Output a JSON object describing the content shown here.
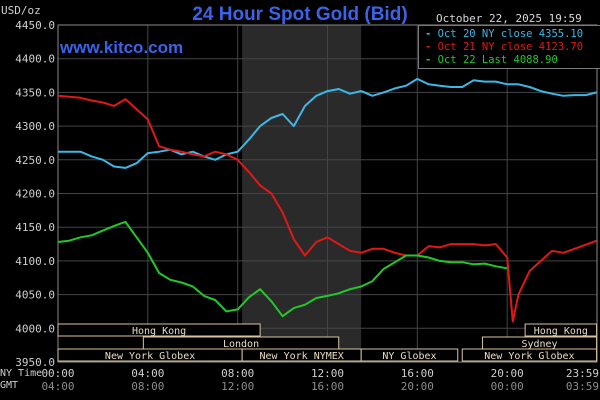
{
  "chart_data": {
    "type": "line",
    "title": "24 Hour Spot Gold (Bid)",
    "ylabel": "USD/oz",
    "datestamp": "October 22, 2025 19:59",
    "watermark": "www.kitco.com",
    "ylim": [
      3950,
      4450
    ],
    "yticks": [
      "4450.0",
      "4400.0",
      "4350.0",
      "4300.0",
      "4250.0",
      "4200.0",
      "4150.0",
      "4100.0",
      "4050.0",
      "4000.0",
      "3950.0"
    ],
    "xlim": [
      0,
      24
    ],
    "xticks_ny": [
      "00:00",
      "04:00",
      "08:00",
      "12:00",
      "16:00",
      "20:00",
      "23:59"
    ],
    "xticks_gmt": [
      "04:00",
      "08:00",
      "12:00",
      "16:00",
      "20:00",
      "00:00",
      "03:59"
    ],
    "tz_ny": "NY Time",
    "tz_gmt": "GMT",
    "shaded_session_hours": [
      8.2,
      13.5
    ],
    "grid": true,
    "colors": {
      "oct20": "#3cb8e8",
      "oct21": "#e01818",
      "oct22": "#22c82a",
      "title": "#3a63e8",
      "grid": "#444444"
    },
    "series": [
      {
        "name": "Oct 20 NY close 4355.10",
        "color": "#3cb8e8",
        "x": [
          0,
          1,
          1.5,
          2,
          2.5,
          3,
          3.5,
          4,
          4.5,
          5,
          5.5,
          6,
          6.5,
          7,
          7.5,
          8,
          8.5,
          9,
          9.5,
          10,
          10.5,
          11,
          11.5,
          12,
          12.5,
          13,
          13.5,
          14,
          14.5,
          15,
          15.5,
          16,
          16.5,
          17,
          17.5,
          18,
          18.5,
          19,
          19.5,
          20,
          20.5,
          21,
          21.5,
          22,
          22.5,
          23,
          23.5,
          23.98
        ],
        "values": [
          4262,
          4262,
          4255,
          4250,
          4240,
          4238,
          4245,
          4260,
          4262,
          4265,
          4258,
          4262,
          4255,
          4250,
          4258,
          4262,
          4280,
          4300,
          4312,
          4318,
          4300,
          4330,
          4345,
          4352,
          4355,
          4348,
          4352,
          4345,
          4350,
          4356,
          4360,
          4370,
          4362,
          4360,
          4358,
          4358,
          4368,
          4366,
          4366,
          4362,
          4362,
          4358,
          4352,
          4348,
          4345,
          4346,
          4346,
          4350
        ]
      },
      {
        "name": "Oct 21 NY close 4123.70",
        "color": "#e01818",
        "x": [
          0,
          1,
          1.5,
          2,
          2.5,
          3,
          3.5,
          4,
          4.5,
          5,
          5.5,
          6,
          6.5,
          7,
          7.5,
          8,
          8.5,
          9,
          9.5,
          10,
          10.5,
          11,
          11.5,
          12,
          12.5,
          13,
          13.5,
          14,
          14.5,
          15,
          15.5,
          16,
          16.5,
          17,
          17.5,
          18,
          18.5,
          19,
          19.5,
          20,
          20.25,
          20.5,
          21,
          21.5,
          22,
          22.5,
          23,
          23.5,
          23.98
        ],
        "values": [
          4345,
          4342,
          4338,
          4335,
          4330,
          4340,
          4325,
          4310,
          4270,
          4265,
          4262,
          4258,
          4255,
          4262,
          4258,
          4250,
          4232,
          4212,
          4200,
          4172,
          4132,
          4108,
          4128,
          4135,
          4125,
          4115,
          4112,
          4118,
          4118,
          4112,
          4108,
          4108,
          4122,
          4120,
          4125,
          4125,
          4125,
          4123,
          4125,
          4105,
          4010,
          4050,
          4085,
          4100,
          4115,
          4112,
          4118,
          4124,
          4130
        ]
      },
      {
        "name": "Oct 22 Last 4088.90",
        "color": "#22c82a",
        "x": [
          0,
          0.5,
          1,
          1.5,
          2,
          2.5,
          3,
          3.5,
          4,
          4.5,
          5,
          5.5,
          6,
          6.5,
          7,
          7.5,
          8,
          8.5,
          9,
          9.5,
          10,
          10.5,
          11,
          11.5,
          12,
          12.5,
          13,
          13.5,
          14,
          14.5,
          15,
          15.5,
          16,
          16.5,
          17,
          17.5,
          18,
          18.5,
          19,
          19.5,
          20
        ],
        "values": [
          4128,
          4130,
          4135,
          4138,
          4145,
          4152,
          4158,
          4135,
          4112,
          4082,
          4072,
          4068,
          4062,
          4048,
          4042,
          4025,
          4028,
          4046,
          4058,
          4040,
          4018,
          4030,
          4035,
          4045,
          4048,
          4052,
          4058,
          4062,
          4070,
          4088,
          4098,
          4108,
          4108,
          4105,
          4100,
          4098,
          4098,
          4095,
          4096,
          4092,
          4089
        ]
      }
    ],
    "sessions": [
      {
        "label": "Hong Kong",
        "row": 0,
        "start": 0,
        "end": 9
      },
      {
        "label": "London",
        "row": 1,
        "start": 3.8,
        "end": 12.5
      },
      {
        "label": "New York Globex",
        "row": 2,
        "start": 0,
        "end": 8.2
      },
      {
        "label": "New York NYMEX",
        "row": 2,
        "start": 8.2,
        "end": 13.5
      },
      {
        "label": "NY Globex",
        "row": 2,
        "start": 13.5,
        "end": 17.8
      },
      {
        "label": "Hong Kong",
        "row": 0,
        "start": 20.8,
        "end": 23.98
      },
      {
        "label": "Sydney",
        "row": 1,
        "start": 18.9,
        "end": 23.98
      },
      {
        "label": "New York Globex",
        "row": 2,
        "start": 18.0,
        "end": 23.98
      }
    ]
  }
}
